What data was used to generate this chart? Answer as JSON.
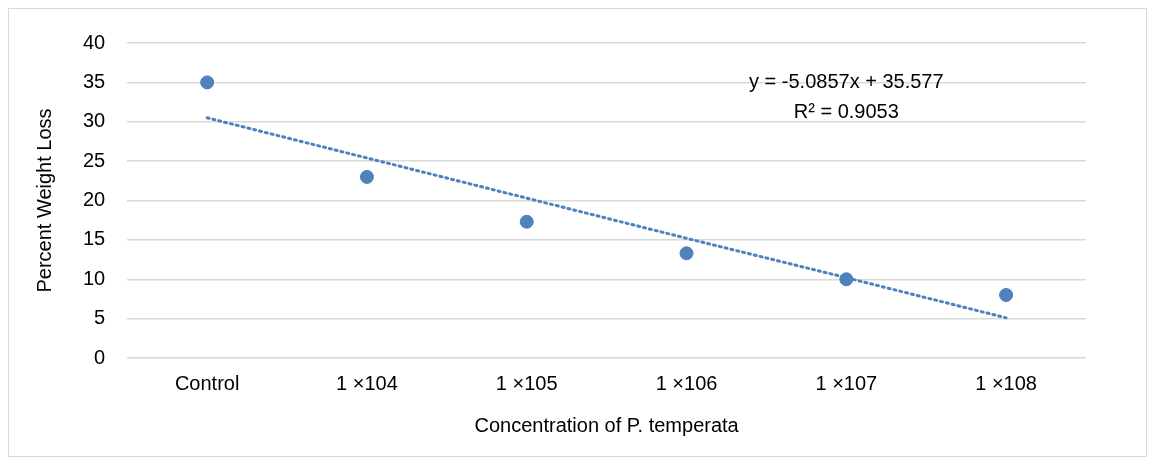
{
  "chart_data": {
    "type": "scatter",
    "xlabel": "Concentration of P. temperata",
    "ylabel": "Percent Weight Loss",
    "categories": [
      "Control",
      "1 ×104",
      "1 ×105",
      "1 ×106",
      "1 ×107",
      "1 ×108"
    ],
    "series": [
      {
        "color": "#4f81bd",
        "marker": "circle",
        "values": [
          35,
          23,
          17.3,
          13.3,
          10,
          8
        ]
      },
      {
        "type": "line",
        "color": "#4f81bd",
        "marker": "none",
        "line_style": "dotted",
        "values": [
          30.5,
          25.4,
          20.3,
          15.2,
          10.2,
          5.1
        ]
      }
    ],
    "annotations": [
      "y = -5.0857x + 35.577",
      "R² = 0.9053"
    ],
    "ylim": [
      0,
      40
    ],
    "yticks": [
      0,
      5,
      10,
      15,
      20,
      25,
      30,
      35,
      40
    ],
    "grid": "y",
    "legend": false
  }
}
